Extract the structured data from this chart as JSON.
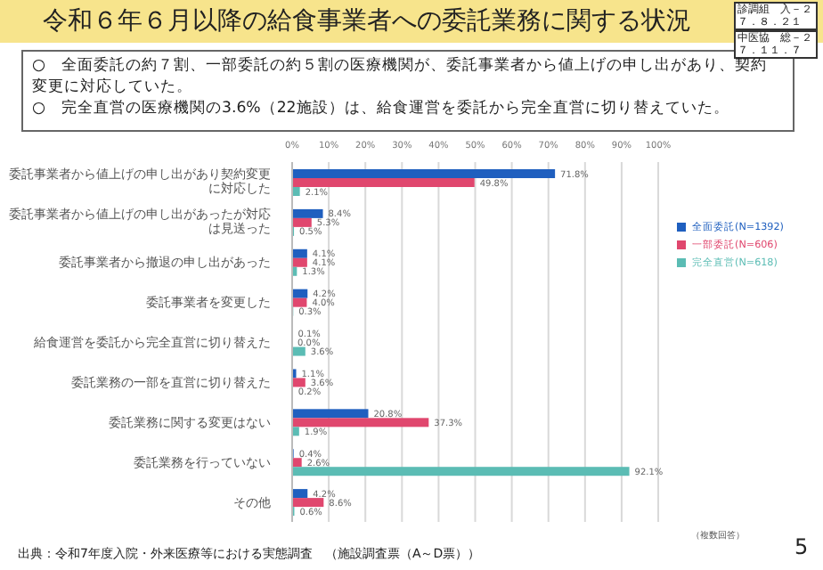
{
  "chart_data": {
    "type": "bar",
    "orientation": "horizontal",
    "title": "令和６年６月以降の給食事業者への委託業務に関する状況",
    "categories": [
      "委託事業者から値上げの申し出があり契約変更に対応した",
      "委託事業者から値上げの申し出があったが対応は見送った",
      "委託事業者から撤退の申し出があった",
      "委託事業者を変更した",
      "給食運営を委託から完全直営に切り替えた",
      "委託業務の一部を直営に切り替えた",
      "委託業務に関する変更はない",
      "委託業務を行っていない",
      "その他"
    ],
    "series": [
      {
        "name": "全面委託(N=1392)",
        "color": "#1f5fbf",
        "values": [
          71.8,
          8.4,
          4.1,
          4.2,
          0.1,
          1.1,
          20.8,
          0.4,
          4.2
        ],
        "value_labels": [
          "71.8%",
          "8.4%",
          "4.1%",
          "4.2%",
          "0.1%",
          "1.1%",
          "20.8%",
          "0.4%",
          "4.2%"
        ]
      },
      {
        "name": "一部委託(N=606)",
        "color": "#e0476e",
        "values": [
          49.8,
          5.3,
          4.1,
          4.0,
          0.0,
          3.6,
          37.3,
          2.6,
          8.6
        ],
        "value_labels": [
          "49.8%",
          "5.3%",
          "4.1%",
          "4.0%",
          "0.0%",
          "3.6%",
          "37.3%",
          "2.6%",
          "8.6%"
        ]
      },
      {
        "name": "完全直営(N=618)",
        "color": "#5bbcb4",
        "values": [
          2.1,
          0.5,
          1.3,
          0.3,
          3.6,
          0.2,
          1.9,
          92.1,
          0.6
        ],
        "value_labels": [
          "2.1%",
          "0.5%",
          "1.3%",
          "0.3%",
          "3.6%",
          "0.2%",
          "1.9%",
          "92.1%",
          "0.6%"
        ]
      }
    ],
    "xlim": [
      0,
      100
    ],
    "xticks": [
      {
        "value": 0,
        "label": "0%"
      },
      {
        "value": 10,
        "label": "10%"
      },
      {
        "value": 20,
        "label": "20%"
      },
      {
        "value": 30,
        "label": "30%"
      },
      {
        "value": 40,
        "label": "40%"
      },
      {
        "value": 50,
        "label": "50%"
      },
      {
        "value": 60,
        "label": "60%"
      },
      {
        "value": 70,
        "label": "70%"
      },
      {
        "value": 80,
        "label": "80%"
      },
      {
        "value": 90,
        "label": "90%"
      },
      {
        "value": 100,
        "label": "100%"
      }
    ],
    "grid": "x",
    "legend": "right",
    "annotations": [
      "診調組　入－２７．８．２１",
      "中医協　総－２７．１１．７",
      "○　全面委託の約７割、一部委託の約５割の医療機関が、委託事業者から値上げの申し出があり、契約変更に対応していた。",
      "○　完全直営の医療機関の3.6%（22施設）は、給食運営を委託から完全直営に切り替えていた。",
      "（複数回答）",
      "出典：令和7年度入院・外来医療等における実態調査　（施設調査票（A～D票））",
      "5"
    ]
  }
}
